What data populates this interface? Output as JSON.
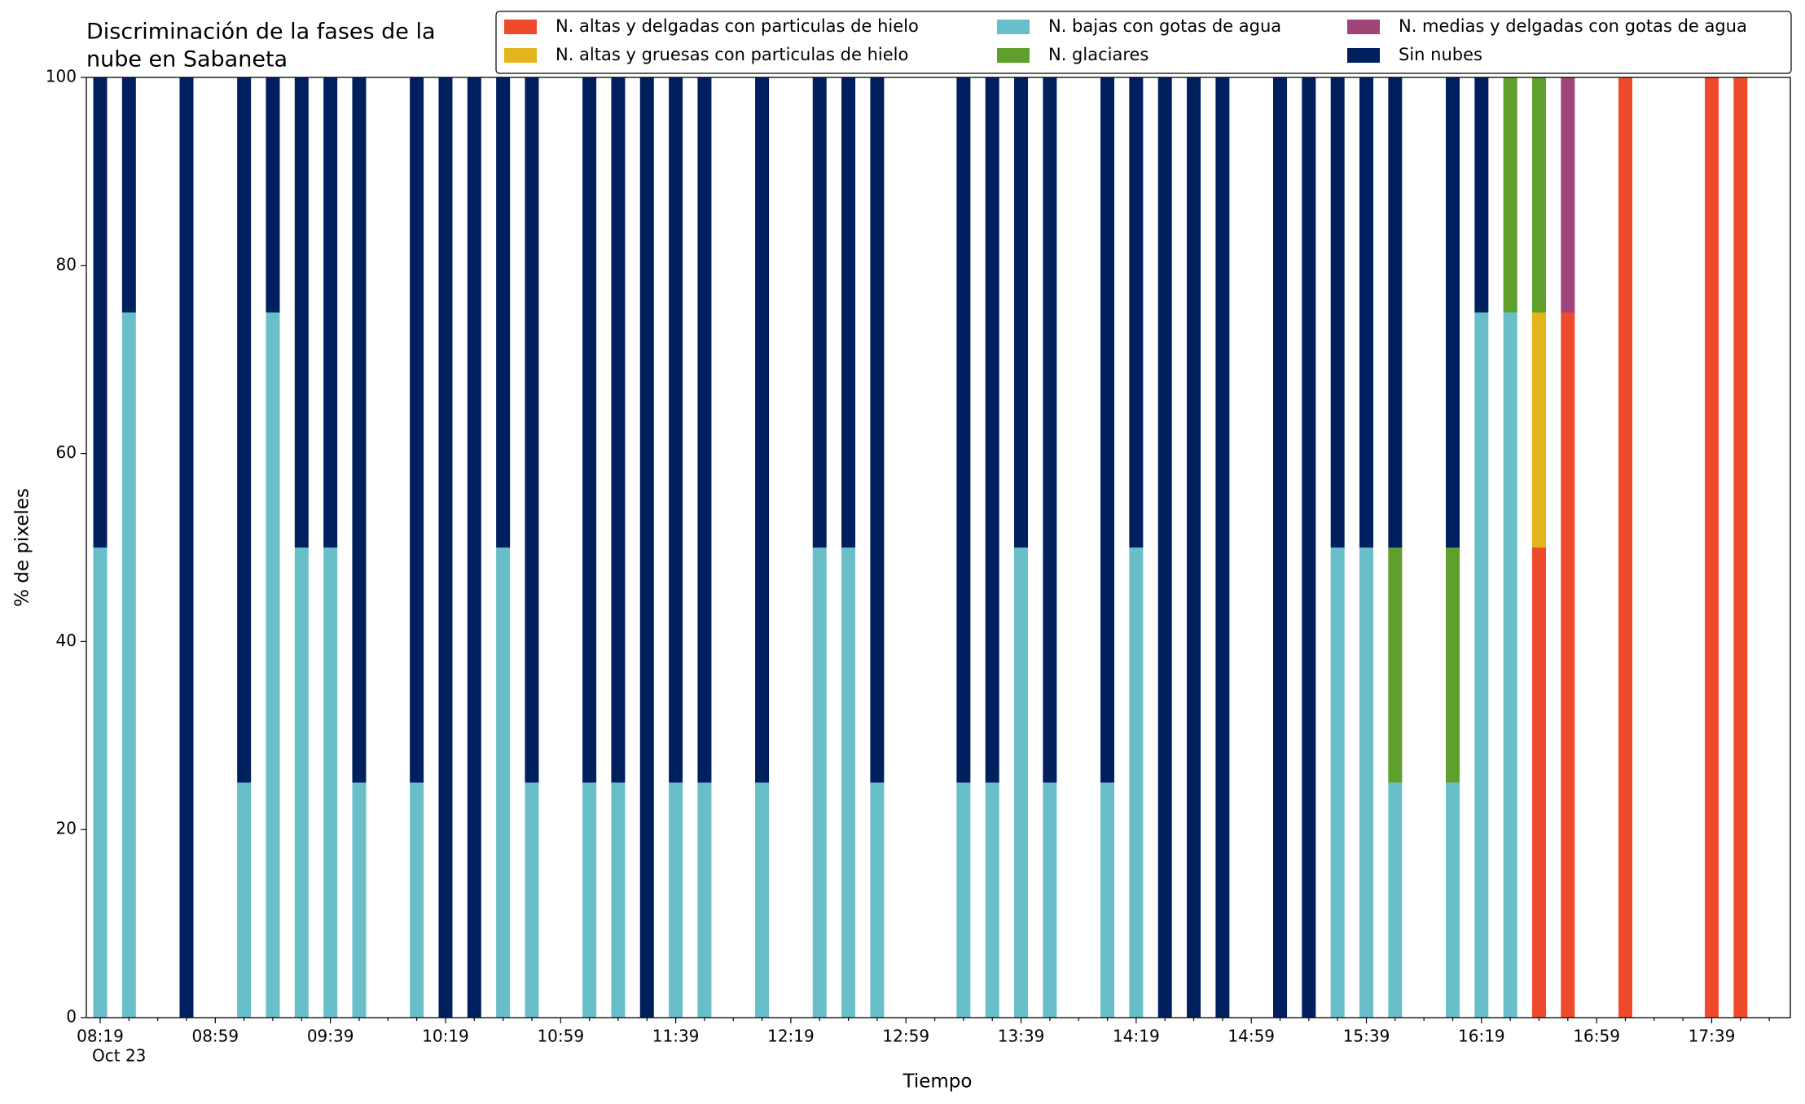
{
  "chart_data": {
    "type": "stacked_bar",
    "title": [
      "Discriminación de la fases de la",
      "nube en Sabaneta"
    ],
    "x_label": "Tiempo",
    "y_label": "% de pixeles",
    "x_date_label": "Oct 23",
    "categories": [
      "08:19",
      null,
      null,
      null,
      "08:59",
      null,
      null,
      null,
      "09:39",
      null,
      null,
      null,
      "10:19",
      null,
      null,
      null,
      "10:59",
      null,
      null,
      null,
      "11:39",
      null,
      null,
      null,
      "12:19",
      null,
      null,
      null,
      "12:59",
      null,
      null,
      null,
      "13:39",
      null,
      null,
      null,
      "14:19",
      null,
      null,
      null,
      "14:59",
      null,
      null,
      null,
      "15:39",
      null,
      null,
      null,
      "16:19",
      null,
      null,
      null,
      "16:59",
      null,
      null,
      null,
      "17:39",
      null,
      null
    ],
    "ylim": [
      0,
      100
    ],
    "yticks": [
      0,
      20,
      40,
      60,
      80,
      100
    ],
    "legend": "top-right",
    "series": [
      {
        "name": "N. altas y delgadas con particulas de hielo",
        "color": "#ef4a2b",
        "values": [
          0,
          0,
          null,
          0,
          null,
          0,
          0,
          0,
          0,
          0,
          null,
          0,
          0,
          0,
          0,
          0,
          null,
          0,
          0,
          0,
          0,
          0,
          null,
          0,
          null,
          0,
          0,
          0,
          null,
          null,
          0,
          0,
          0,
          0,
          null,
          0,
          0,
          0,
          0,
          0,
          null,
          0,
          0,
          0,
          0,
          0,
          null,
          0,
          0,
          0,
          50,
          75,
          null,
          100,
          null,
          null,
          100,
          100,
          null
        ]
      },
      {
        "name": "N. altas y gruesas con particulas de hielo",
        "color": "#e4b41c",
        "values": [
          0,
          0,
          null,
          0,
          null,
          0,
          0,
          0,
          0,
          0,
          null,
          0,
          0,
          0,
          0,
          0,
          null,
          0,
          0,
          0,
          0,
          0,
          null,
          0,
          null,
          0,
          0,
          0,
          null,
          null,
          0,
          0,
          0,
          0,
          null,
          0,
          0,
          0,
          0,
          0,
          null,
          0,
          0,
          0,
          0,
          0,
          null,
          0,
          0,
          0,
          25,
          0,
          null,
          0,
          null,
          null,
          0,
          0,
          null
        ]
      },
      {
        "name": "N. bajas con gotas de agua",
        "color": "#68bfca",
        "values": [
          50,
          75,
          null,
          0,
          null,
          25,
          75,
          50,
          50,
          25,
          null,
          25,
          0,
          0,
          50,
          25,
          null,
          25,
          25,
          0,
          25,
          25,
          null,
          25,
          null,
          50,
          50,
          25,
          null,
          null,
          25,
          25,
          50,
          25,
          null,
          25,
          50,
          0,
          0,
          0,
          null,
          0,
          0,
          50,
          50,
          25,
          null,
          25,
          75,
          75,
          0,
          0,
          null,
          0,
          null,
          null,
          0,
          0,
          null
        ]
      },
      {
        "name": "N. glaciares",
        "color": "#5f9f2c",
        "values": [
          0,
          0,
          null,
          0,
          null,
          0,
          0,
          0,
          0,
          0,
          null,
          0,
          0,
          0,
          0,
          0,
          null,
          0,
          0,
          0,
          0,
          0,
          null,
          0,
          null,
          0,
          0,
          0,
          null,
          null,
          0,
          0,
          0,
          0,
          null,
          0,
          0,
          0,
          0,
          0,
          null,
          0,
          0,
          0,
          0,
          25,
          null,
          25,
          0,
          25,
          25,
          0,
          null,
          0,
          null,
          null,
          0,
          0,
          null
        ]
      },
      {
        "name": "N. medias y delgadas con gotas de agua",
        "color": "#a1447a",
        "values": [
          0,
          0,
          null,
          0,
          null,
          0,
          0,
          0,
          0,
          0,
          null,
          0,
          0,
          0,
          0,
          0,
          null,
          0,
          0,
          0,
          0,
          0,
          null,
          0,
          null,
          0,
          0,
          0,
          null,
          null,
          0,
          0,
          0,
          0,
          null,
          0,
          0,
          0,
          0,
          0,
          null,
          0,
          0,
          0,
          0,
          0,
          null,
          0,
          0,
          0,
          0,
          25,
          null,
          0,
          null,
          null,
          0,
          0,
          null
        ]
      },
      {
        "name": "Sin nubes",
        "color": "#001f5e",
        "values": [
          50,
          25,
          null,
          100,
          null,
          75,
          25,
          50,
          50,
          75,
          null,
          75,
          100,
          100,
          50,
          75,
          null,
          75,
          75,
          100,
          75,
          75,
          null,
          75,
          null,
          50,
          50,
          75,
          null,
          null,
          75,
          75,
          50,
          75,
          null,
          75,
          50,
          100,
          100,
          100,
          null,
          100,
          100,
          50,
          50,
          50,
          null,
          50,
          25,
          0,
          0,
          0,
          null,
          0,
          null,
          null,
          0,
          0,
          null
        ]
      }
    ]
  }
}
